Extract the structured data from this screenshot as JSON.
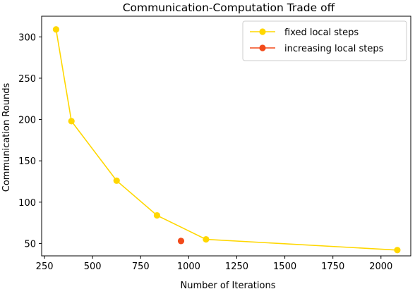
{
  "chart_data": {
    "type": "line",
    "title": "Communication-Computation Trade off",
    "xlabel": "Number of Iterations",
    "ylabel": "Communication Rounds",
    "xlim": [
      235,
      2155
    ],
    "ylim": [
      35,
      325
    ],
    "xticks": [
      250,
      500,
      750,
      1000,
      1250,
      1500,
      1750,
      2000
    ],
    "yticks": [
      50,
      100,
      150,
      200,
      250,
      300
    ],
    "grid": false,
    "legend_position": "top-right",
    "series": [
      {
        "name": "fixed local steps",
        "color": "#FFD700",
        "marker": "circle",
        "points": [
          [
            310,
            309
          ],
          [
            390,
            198
          ],
          [
            625,
            126
          ],
          [
            835,
            84
          ],
          [
            1090,
            55
          ],
          [
            2085,
            42
          ]
        ]
      },
      {
        "name": "increasing local steps",
        "color": "#F24A1A",
        "marker": "circle",
        "points": [
          [
            960,
            53
          ]
        ]
      }
    ]
  }
}
